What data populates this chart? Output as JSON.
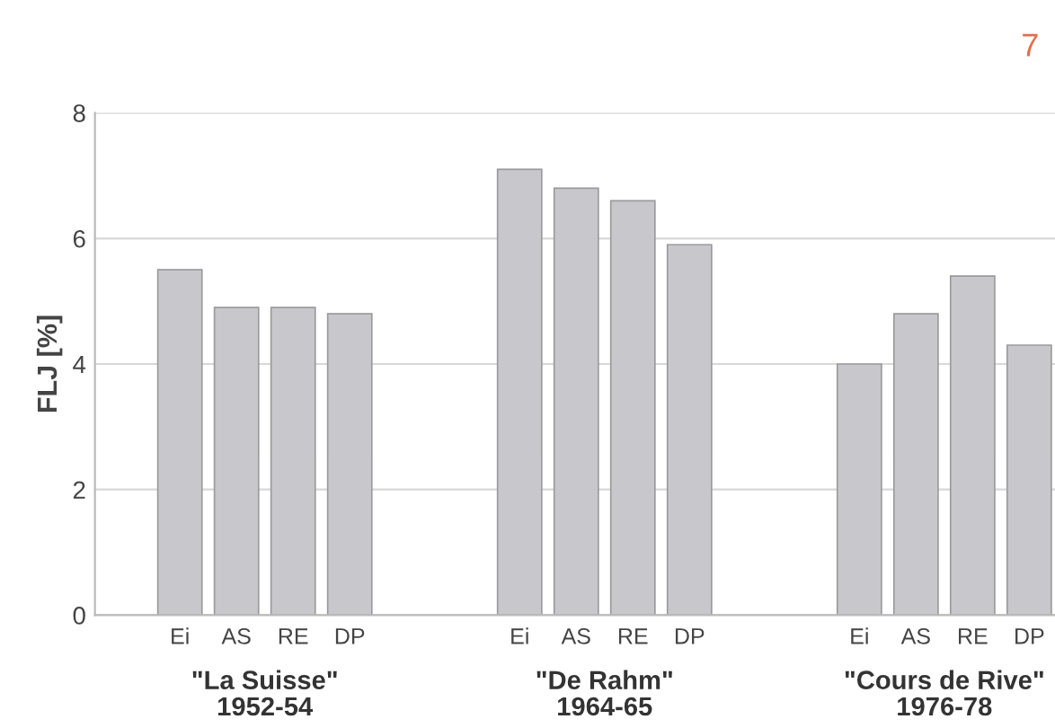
{
  "chart_data": {
    "type": "bar",
    "categories": [
      "Ei",
      "AS",
      "RE",
      "DP",
      null,
      null,
      "Ei",
      "AS",
      "RE",
      "DP",
      null,
      null,
      "Ei",
      "AS",
      "RE",
      "DP"
    ],
    "values": [
      5.5,
      4.9,
      4.9,
      4.8,
      null,
      null,
      7.1,
      6.8,
      6.6,
      5.9,
      null,
      null,
      4.0,
      4.8,
      5.4,
      4.3
    ],
    "color": "#c8c8cc",
    "ylabel": "FLJ [%]",
    "ylim": [
      0,
      8
    ],
    "yticks": [
      0,
      2,
      4,
      6,
      8
    ],
    "grid": "y",
    "annotations": [
      "\"La Suisse\"\n1952-54",
      "\"De Rahm\"\n1964-65",
      "\"Cours de Rive\"\n1976-78",
      "7"
    ]
  }
}
